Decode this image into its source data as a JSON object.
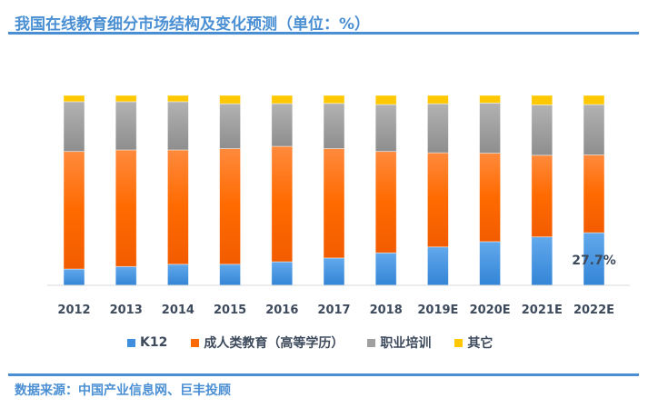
{
  "header": {
    "title": "我国在线教育细分市场结构及变化预测（单位：%）"
  },
  "footer": {
    "source": "数据来源：中国产业信息网、巨丰投顾"
  },
  "colors": {
    "k12": "#3f8fde",
    "adult": "#ff6a00",
    "vocational": "#a0a0a0",
    "other": "#ffc800",
    "title_blue": "#4a8fd4",
    "label_text": "#3d4a5c"
  },
  "chart_data": {
    "type": "bar",
    "stacked": true,
    "percent_stacked": true,
    "title": "我国在线教育细分市场结构及变化预测（单位：%）",
    "xlabel": "",
    "ylabel": "",
    "ylim": [
      0,
      100
    ],
    "grid": false,
    "legend_position": "bottom",
    "categories": [
      "2012",
      "2013",
      "2014",
      "2015",
      "2016",
      "2017",
      "2018",
      "2019E",
      "2020E",
      "2021E",
      "2022E"
    ],
    "series": [
      {
        "name": "K12",
        "color": "#3f8fde",
        "values": [
          8.6,
          9.9,
          11.1,
          11.1,
          12.4,
          14.4,
          17.1,
          20.2,
          23.0,
          25.5,
          27.7
        ]
      },
      {
        "name": "成人类教育（高等学历）",
        "color": "#ff6a00",
        "values": [
          61.9,
          61.4,
          60.2,
          60.9,
          60.8,
          57.6,
          53.4,
          49.6,
          46.6,
          43.0,
          41.0
        ]
      },
      {
        "name": "职业培训",
        "color": "#a0a0a0",
        "values": [
          26.2,
          25.4,
          25.4,
          23.6,
          22.5,
          23.8,
          24.7,
          25.8,
          26.4,
          26.5,
          26.5
        ]
      },
      {
        "name": "其它",
        "color": "#ffc800",
        "values": [
          3.3,
          3.3,
          3.3,
          4.4,
          4.3,
          4.2,
          4.8,
          4.4,
          4.0,
          5.0,
          4.8
        ]
      }
    ],
    "annotations": [
      {
        "category": "2022E",
        "series": "K12",
        "text": "27.7%"
      }
    ]
  }
}
